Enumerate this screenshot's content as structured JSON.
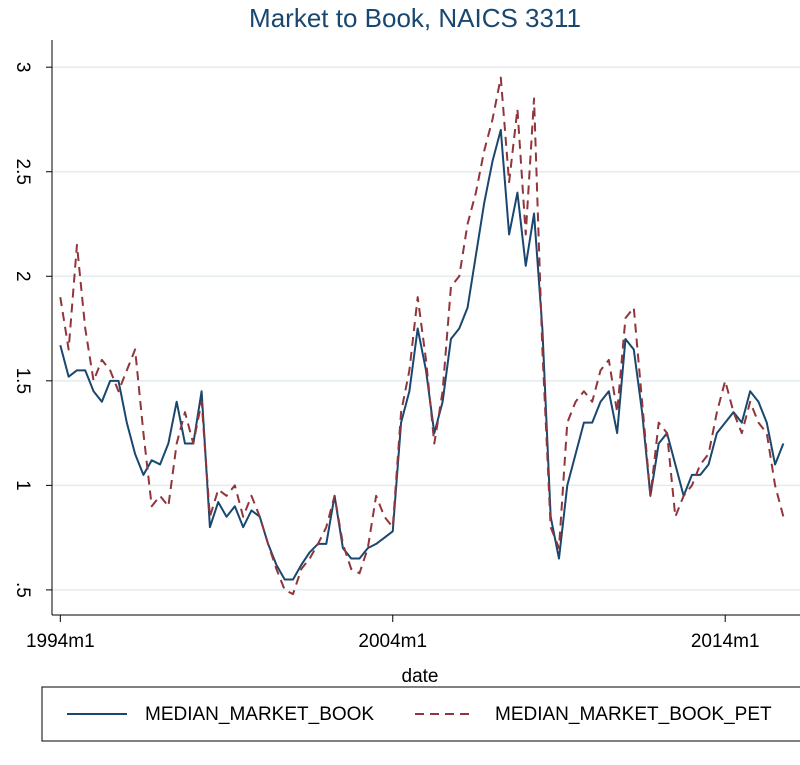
{
  "chart_data": {
    "type": "line",
    "title": "Market to Book, NAICS 3311",
    "x_label": "date",
    "x": [
      "1994m1",
      "1994m4",
      "1994m7",
      "1994m10",
      "1995m1",
      "1995m4",
      "1995m7",
      "1995m10",
      "1996m1",
      "1996m4",
      "1996m7",
      "1996m10",
      "1997m1",
      "1997m4",
      "1997m7",
      "1997m10",
      "1998m1",
      "1998m4",
      "1998m7",
      "1998m10",
      "1999m1",
      "1999m4",
      "1999m7",
      "1999m10",
      "2000m1",
      "2000m4",
      "2000m7",
      "2000m10",
      "2001m1",
      "2001m4",
      "2001m7",
      "2001m10",
      "2002m1",
      "2002m4",
      "2002m7",
      "2002m10",
      "2003m1",
      "2003m4",
      "2003m7",
      "2003m10",
      "2004m1",
      "2004m4",
      "2004m7",
      "2004m10",
      "2005m1",
      "2005m4",
      "2005m7",
      "2005m10",
      "2006m1",
      "2006m4",
      "2006m7",
      "2006m10",
      "2007m1",
      "2007m4",
      "2007m7",
      "2007m10",
      "2008m1",
      "2008m4",
      "2008m7",
      "2008m10",
      "2009m1",
      "2009m4",
      "2009m7",
      "2009m10",
      "2010m1",
      "2010m4",
      "2010m7",
      "2010m10",
      "2011m1",
      "2011m4",
      "2011m7",
      "2011m10",
      "2012m1",
      "2012m4",
      "2012m7",
      "2012m10",
      "2013m1",
      "2013m4",
      "2013m7",
      "2013m10",
      "2014m1",
      "2014m4",
      "2014m7",
      "2014m10",
      "2015m1",
      "2015m4",
      "2015m7",
      "2015m10"
    ],
    "series": [
      {
        "name": "MEDIAN_MARKET_BOOK",
        "color": "#1a476f",
        "dash": "solid",
        "values": [
          1.67,
          1.52,
          1.55,
          1.55,
          1.45,
          1.4,
          1.5,
          1.5,
          1.3,
          1.15,
          1.05,
          1.12,
          1.1,
          1.2,
          1.4,
          1.2,
          1.2,
          1.45,
          0.8,
          0.92,
          0.85,
          0.9,
          0.8,
          0.88,
          0.85,
          0.72,
          0.62,
          0.55,
          0.55,
          0.62,
          0.68,
          0.72,
          0.72,
          0.95,
          0.7,
          0.65,
          0.65,
          0.7,
          0.72,
          0.75,
          0.78,
          1.3,
          1.45,
          1.75,
          1.55,
          1.25,
          1.4,
          1.7,
          1.75,
          1.85,
          2.1,
          2.35,
          2.55,
          2.7,
          2.2,
          2.4,
          2.05,
          2.3,
          1.75,
          0.85,
          0.65,
          1.0,
          1.15,
          1.3,
          1.3,
          1.4,
          1.45,
          1.25,
          1.7,
          1.65,
          1.35,
          0.95,
          1.2,
          1.25,
          1.1,
          0.95,
          1.05,
          1.05,
          1.1,
          1.25,
          1.3,
          1.35,
          1.3,
          1.45,
          1.4,
          1.3,
          1.1,
          1.2
        ]
      },
      {
        "name": "MEDIAN_MARKET_BOOK_PET",
        "color": "#90353b",
        "dash": "dashed",
        "values": [
          1.9,
          1.65,
          2.15,
          1.75,
          1.5,
          1.6,
          1.55,
          1.45,
          1.55,
          1.65,
          1.25,
          0.9,
          0.95,
          0.9,
          1.2,
          1.35,
          1.2,
          1.4,
          0.85,
          0.98,
          0.95,
          1.0,
          0.85,
          0.95,
          0.85,
          0.72,
          0.6,
          0.5,
          0.48,
          0.6,
          0.65,
          0.72,
          0.8,
          0.95,
          0.72,
          0.6,
          0.58,
          0.7,
          0.95,
          0.85,
          0.8,
          1.35,
          1.55,
          1.9,
          1.6,
          1.2,
          1.45,
          1.95,
          2.0,
          2.25,
          2.4,
          2.6,
          2.75,
          2.95,
          2.45,
          2.8,
          2.2,
          2.85,
          1.65,
          0.8,
          0.7,
          1.3,
          1.4,
          1.45,
          1.4,
          1.55,
          1.6,
          1.35,
          1.8,
          1.85,
          1.4,
          0.95,
          1.3,
          1.25,
          0.85,
          0.95,
          1.0,
          1.1,
          1.15,
          1.35,
          1.5,
          1.35,
          1.25,
          1.4,
          1.3,
          1.25,
          1.0,
          0.85
        ]
      }
    ],
    "xlim": [
      "1993m10",
      "2016m4"
    ],
    "xticks": [
      "1994m1",
      "2004m1",
      "2014m1"
    ],
    "ylim": [
      0.38,
      3.13
    ],
    "yticks": [
      {
        "value": 0.5,
        "label": ".5"
      },
      1,
      1.5,
      2,
      2.5,
      3
    ],
    "grid": true,
    "legend": "bottom"
  }
}
